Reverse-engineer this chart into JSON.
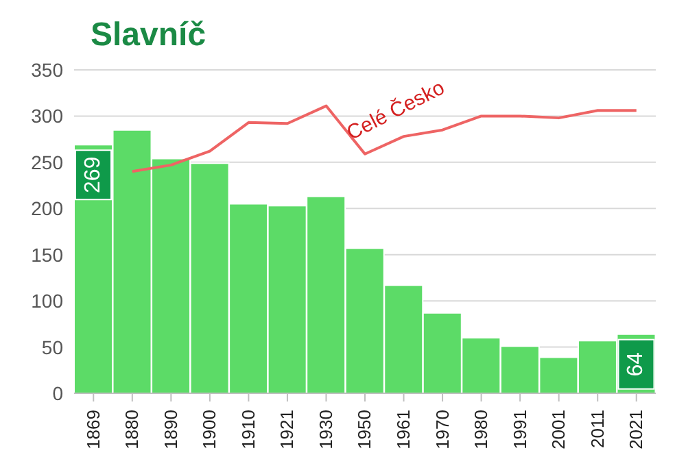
{
  "chart_data": {
    "type": "bar",
    "title": "Slavníč",
    "categories": [
      "1869",
      "1880",
      "1890",
      "1900",
      "1910",
      "1921",
      "1930",
      "1950",
      "1961",
      "1970",
      "1980",
      "1991",
      "2001",
      "2011",
      "2021"
    ],
    "series": [
      {
        "color": "#5cdb67",
        "values": [
          269,
          285,
          254,
          249,
          205,
          203,
          213,
          157,
          117,
          87,
          60,
          51,
          39,
          57,
          64
        ],
        "value_labels": [
          "269",
          null,
          null,
          null,
          null,
          null,
          null,
          null,
          null,
          null,
          null,
          null,
          null,
          null,
          "64"
        ]
      },
      {
        "type": "line",
        "name": "Celé Česko",
        "color": "#ee6464",
        "values": [
          null,
          240,
          247,
          262,
          293,
          292,
          311,
          259,
          278,
          285,
          300,
          300,
          298,
          306,
          306
        ]
      }
    ],
    "ylim": [
      0,
      350
    ],
    "yticks": [
      0,
      50,
      100,
      150,
      200,
      250,
      300,
      350
    ],
    "grid": "y",
    "marker": "none",
    "line_style": "solid"
  }
}
